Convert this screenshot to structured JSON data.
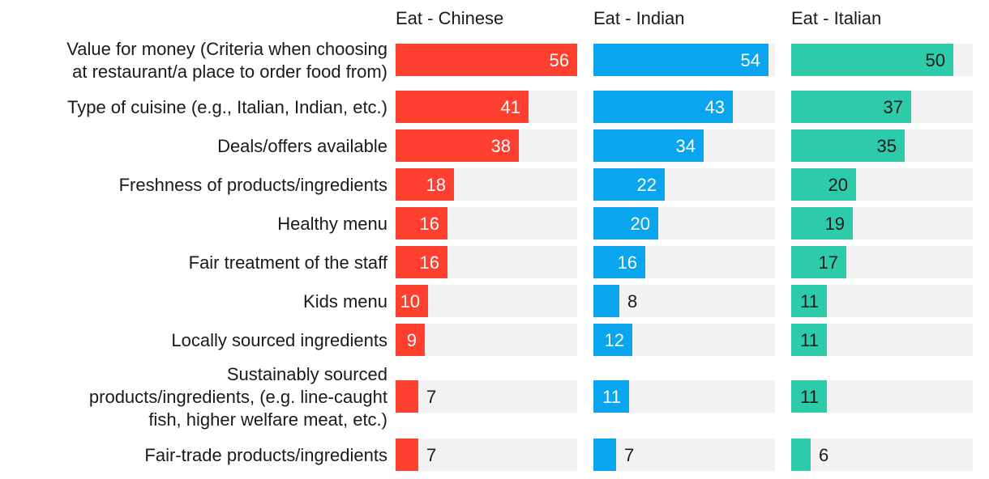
{
  "chart_data": {
    "type": "bar",
    "orientation": "horizontal",
    "layout": "small-multiples",
    "categories": [
      [
        "Value for money (Criteria when choosing",
        "at restaurant/a place to order food from)"
      ],
      [
        "Type of cuisine (e.g., Italian, Indian, etc.)"
      ],
      [
        "Deals/offers available"
      ],
      [
        "Freshness of products/ingredients"
      ],
      [
        "Healthy menu"
      ],
      [
        "Fair treatment of the staff"
      ],
      [
        "Kids menu"
      ],
      [
        "Locally sourced ingredients"
      ],
      [
        "Sustainably sourced",
        "products/ingredients, (e.g. line-caught",
        "fish, higher welfare meat, etc.)"
      ],
      [
        "Fair-trade products/ingredients"
      ]
    ],
    "series": [
      {
        "name": "Eat - Chinese",
        "color": "#ff4030",
        "values": [
          56,
          41,
          38,
          18,
          16,
          16,
          10,
          9,
          7,
          7
        ]
      },
      {
        "name": "Eat - Indian",
        "color": "#0aa5ee",
        "values": [
          54,
          43,
          34,
          22,
          20,
          16,
          8,
          12,
          11,
          7
        ]
      },
      {
        "name": "Eat - Italian",
        "color": "#2ecbaa",
        "values": [
          50,
          37,
          35,
          20,
          19,
          17,
          11,
          11,
          11,
          6
        ]
      }
    ],
    "xlim": [
      0,
      56
    ],
    "track_color": "#f2f2f2"
  }
}
